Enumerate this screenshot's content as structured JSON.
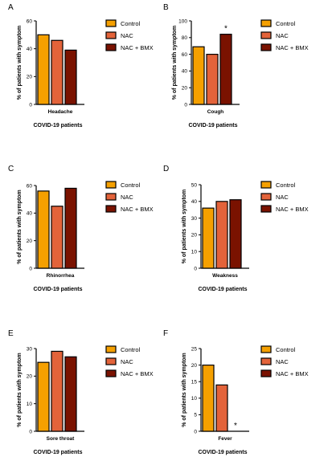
{
  "chart_data": [
    {
      "type": "bar",
      "panel": "A",
      "categories": [
        "Headache"
      ],
      "series": [
        {
          "name": "Control",
          "values": [
            50
          ]
        },
        {
          "name": "NAC",
          "values": [
            46
          ]
        },
        {
          "name": "NAC + BMX",
          "values": [
            39
          ]
        }
      ],
      "ylabel": "% of patients with symptom",
      "xlabel": "COVID-19 patients",
      "ylim": [
        0,
        60
      ],
      "yticks": [
        0,
        20,
        40,
        60
      ],
      "annotations": [],
      "legend": "right"
    },
    {
      "type": "bar",
      "panel": "B",
      "categories": [
        "Cough"
      ],
      "series": [
        {
          "name": "Control",
          "values": [
            69
          ]
        },
        {
          "name": "NAC",
          "values": [
            60
          ]
        },
        {
          "name": "NAC + BMX",
          "values": [
            84
          ]
        }
      ],
      "ylabel": "% of patients with symptom",
      "xlabel": "COVID-19 patients",
      "ylim": [
        0,
        100
      ],
      "yticks": [
        0,
        20,
        40,
        60,
        80,
        100
      ],
      "annotations": [
        {
          "series": 2,
          "text": "*"
        }
      ],
      "legend": "right"
    },
    {
      "type": "bar",
      "panel": "C",
      "categories": [
        "Rhinorrhea"
      ],
      "series": [
        {
          "name": "Control",
          "values": [
            56
          ]
        },
        {
          "name": "NAC",
          "values": [
            45
          ]
        },
        {
          "name": "NAC + BMX",
          "values": [
            58
          ]
        }
      ],
      "ylabel": "% of patients with symptom",
      "xlabel": "COVID-19 patients",
      "ylim": [
        0,
        60
      ],
      "yticks": [
        0,
        20,
        40,
        60
      ],
      "annotations": [],
      "legend": "right"
    },
    {
      "type": "bar",
      "panel": "D",
      "categories": [
        "Weakness"
      ],
      "series": [
        {
          "name": "Control",
          "values": [
            36
          ]
        },
        {
          "name": "NAC",
          "values": [
            40
          ]
        },
        {
          "name": "NAC + BMX",
          "values": [
            41
          ]
        }
      ],
      "ylabel": "% of patients with symptom",
      "xlabel": "COVID-19 patients",
      "ylim": [
        0,
        50
      ],
      "yticks": [
        0,
        10,
        20,
        30,
        40,
        50
      ],
      "annotations": [],
      "legend": "right"
    },
    {
      "type": "bar",
      "panel": "E",
      "categories": [
        "Sore throat"
      ],
      "series": [
        {
          "name": "Control",
          "values": [
            25
          ]
        },
        {
          "name": "NAC",
          "values": [
            29
          ]
        },
        {
          "name": "NAC + BMX",
          "values": [
            27
          ]
        }
      ],
      "ylabel": "% of patients with symptom",
      "xlabel": "COVID-19 patients",
      "ylim": [
        0,
        30
      ],
      "yticks": [
        0,
        10,
        20,
        30
      ],
      "annotations": [],
      "legend": "right"
    },
    {
      "type": "bar",
      "panel": "F",
      "categories": [
        "Fever"
      ],
      "series": [
        {
          "name": "Control",
          "values": [
            20
          ]
        },
        {
          "name": "NAC",
          "values": [
            14
          ]
        },
        {
          "name": "NAC + BMX",
          "values": [
            0
          ]
        }
      ],
      "ylabel": "% of patients with symptom",
      "xlabel": "COVID-19 patients",
      "ylim": [
        0,
        25
      ],
      "yticks": [
        0,
        5,
        10,
        15,
        20,
        25
      ],
      "annotations": [
        {
          "series": 2,
          "text": "*"
        }
      ],
      "legend": "right"
    }
  ],
  "colors": {
    "Control": "#f5a000",
    "NAC": "#e3633a",
    "NAC + BMX": "#7a1200"
  }
}
